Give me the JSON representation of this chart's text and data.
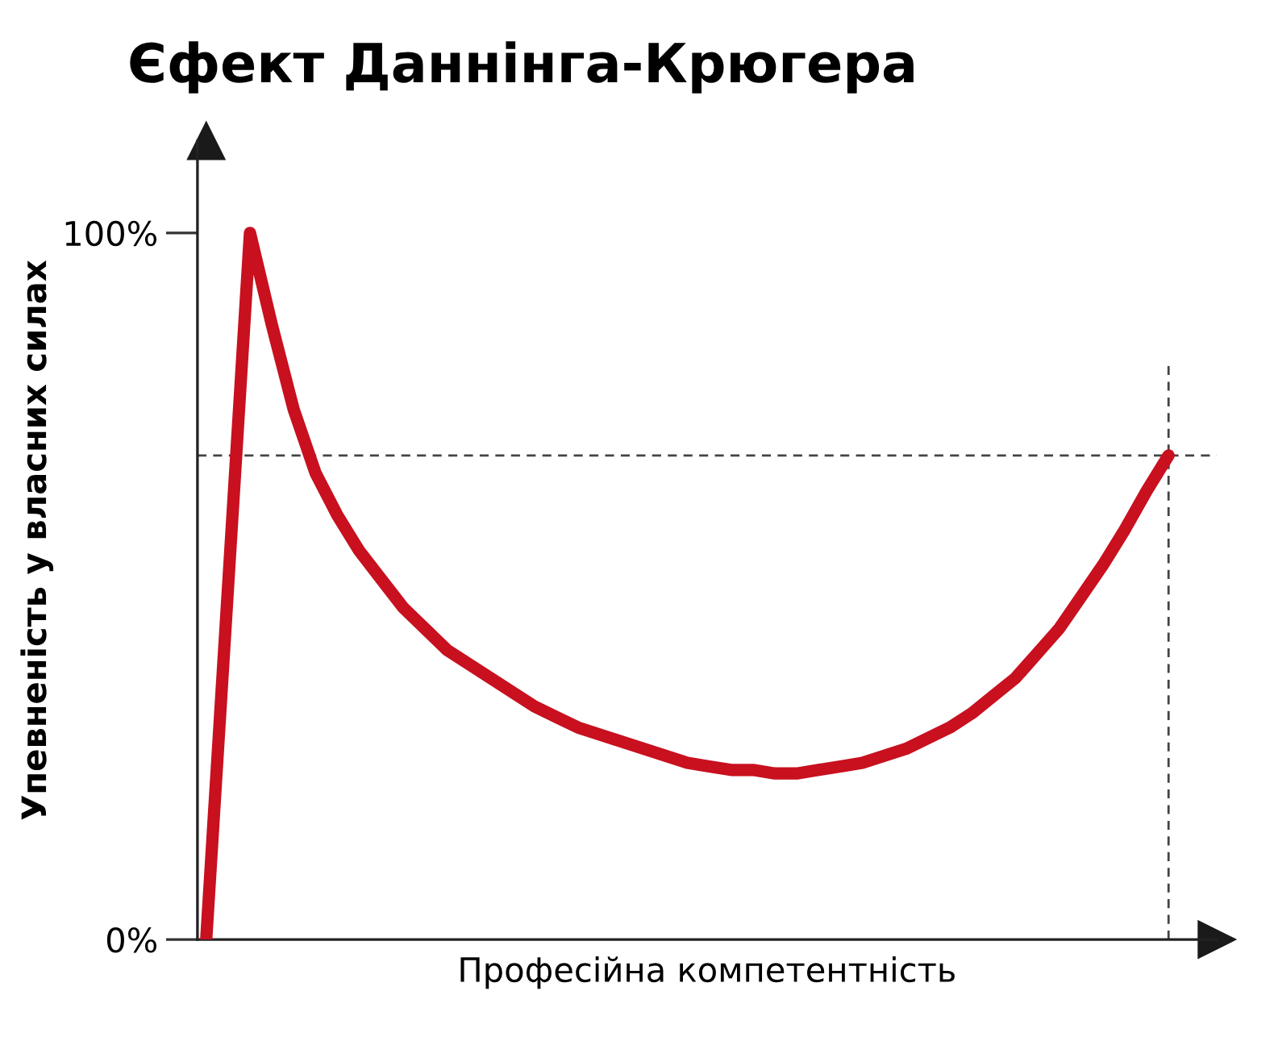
{
  "chart_data": {
    "type": "line",
    "title": "Єфект Даннінга-Крюгера",
    "xlabel": "Професійна компетентність",
    "ylabel": "Упевненість у власних силах",
    "categories": [
      null,
      null,
      null,
      null,
      null,
      null,
      null,
      null,
      null,
      null,
      null,
      null,
      null,
      null,
      null,
      null,
      null,
      null,
      null,
      null,
      null,
      null,
      null,
      null,
      null,
      null,
      null,
      null,
      null,
      null,
      null,
      null,
      null,
      null,
      null,
      null,
      null,
      null,
      null,
      null,
      null,
      null,
      null,
      null,
      null
    ],
    "series": [
      {
        "color": "#c8101f",
        "values": [
          0,
          50,
          100,
          87,
          75,
          66,
          60,
          55,
          51,
          47,
          44,
          41,
          39,
          37,
          35,
          33,
          31.5,
          30,
          29,
          28,
          27,
          26,
          25,
          24.5,
          24,
          24,
          23.5,
          23.5,
          24,
          24.5,
          25,
          26,
          27,
          28.5,
          30,
          32,
          34.5,
          37,
          40.5,
          44,
          48.5,
          53,
          58,
          63.5,
          68.5
        ]
      }
    ],
    "ylim": [
      0,
      113
    ],
    "yticks": [
      {
        "value": 0,
        "label": "0%"
      },
      {
        "value": 100,
        "label": "100%"
      }
    ],
    "ref_lines": [
      {
        "axis": "y",
        "value": 68.5,
        "color": "#444444",
        "line_style": "dashed"
      }
    ],
    "grid": false,
    "legend": false,
    "marker": "none",
    "line_style": "solid"
  }
}
